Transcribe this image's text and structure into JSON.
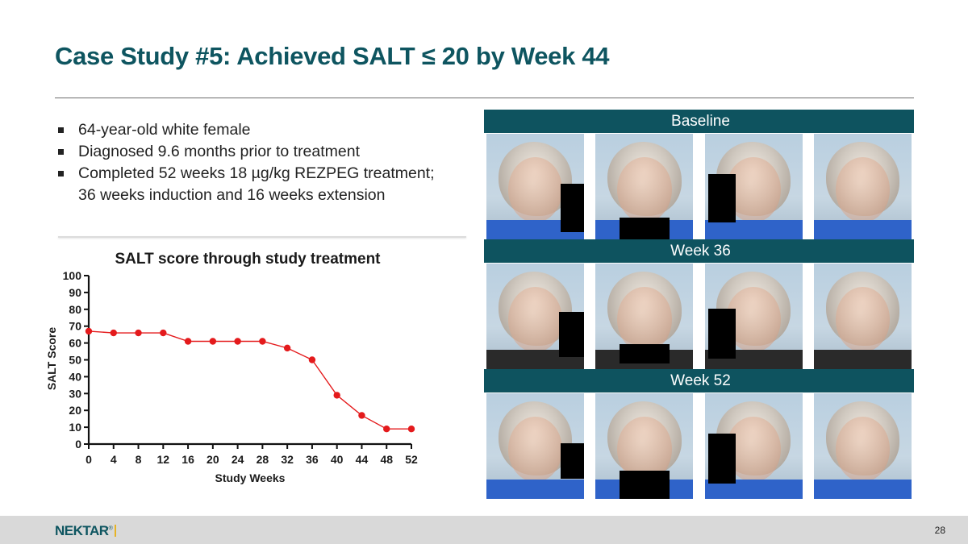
{
  "slide": {
    "title": "Case Study #5: Achieved SALT  ≤ 20 by Week 44",
    "bullets": [
      "64-year-old white female",
      "Diagnosed 9.6 months prior to treatment",
      "Completed 52 weeks 18 µg/kg REZPEG treatment; 36 weeks induction and 16 weeks extension"
    ],
    "page_number": "28"
  },
  "footer": {
    "logo": "NEKTAR",
    "logo_mark": "®"
  },
  "photo_sections": [
    {
      "label": "Baseline"
    },
    {
      "label": "Week 36"
    },
    {
      "label": "Week 52"
    }
  ],
  "colors": {
    "title": "#0e5560",
    "band": "#0e535f",
    "series": "#e41a1c"
  },
  "chart_data": {
    "type": "line",
    "title": "SALT score through study treatment",
    "xlabel": "Study Weeks",
    "ylabel": "SALT Score",
    "x": [
      0,
      4,
      8,
      12,
      16,
      20,
      24,
      28,
      32,
      36,
      40,
      44,
      48,
      52
    ],
    "xticks": [
      0,
      4,
      8,
      12,
      16,
      20,
      24,
      28,
      32,
      36,
      40,
      44,
      48,
      52
    ],
    "yticks": [
      0,
      10,
      20,
      30,
      40,
      50,
      60,
      70,
      80,
      90,
      100
    ],
    "xlim": [
      0,
      52
    ],
    "ylim": [
      0,
      100
    ],
    "series": [
      {
        "values": [
          67,
          66,
          66,
          66,
          61,
          61,
          61,
          61,
          57,
          50,
          29,
          17,
          9,
          9
        ]
      }
    ],
    "grid": false,
    "legend": "none"
  }
}
